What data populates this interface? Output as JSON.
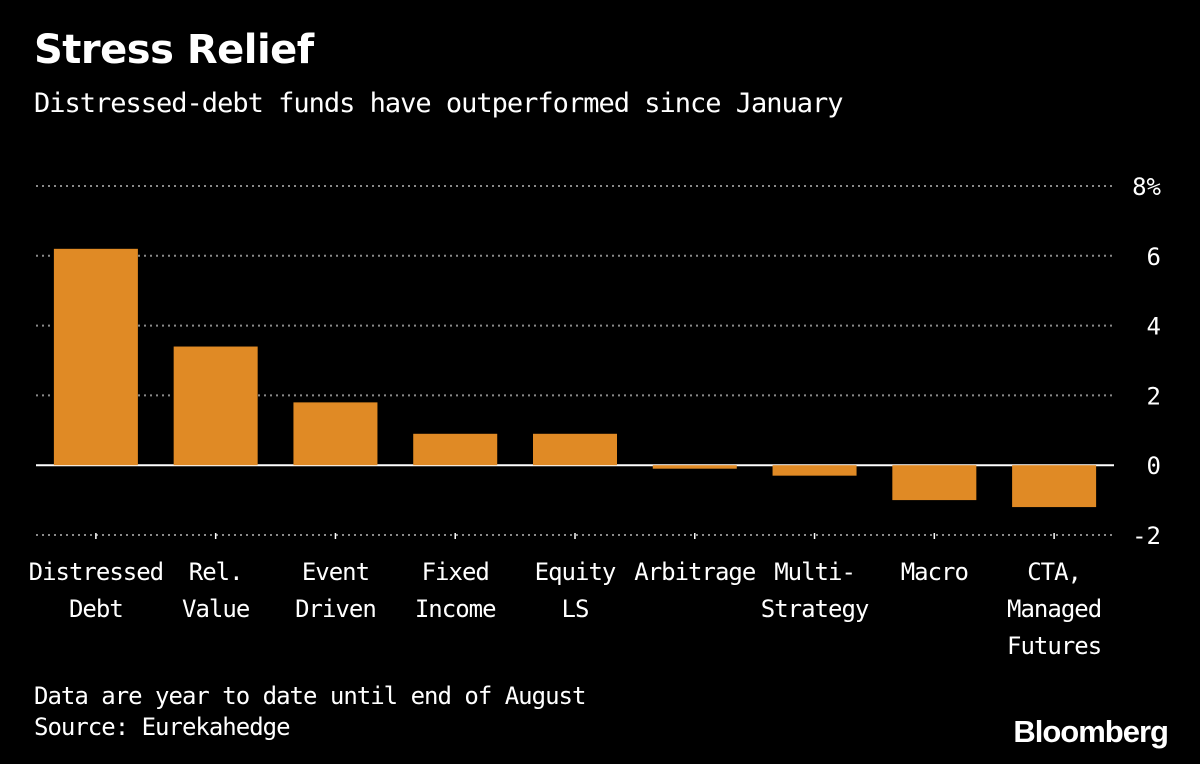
{
  "header": {
    "title": "Stress Relief",
    "subtitle": "Distressed-debt funds have outperformed since January"
  },
  "footer": {
    "note": "Data are year to date until end of August",
    "source": "Source: Eurekahedge",
    "brand": "Bloomberg"
  },
  "colors": {
    "background": "#000000",
    "bar": "#e08a25",
    "text": "#ffffff",
    "grid": "#8a8a8a"
  },
  "chart_data": {
    "type": "bar",
    "title": "Stress Relief",
    "subtitle": "Distressed-debt funds have outperformed since January",
    "xlabel": "",
    "ylabel": "",
    "categories": [
      [
        "Distressed",
        "Debt"
      ],
      [
        "Rel.",
        "Value"
      ],
      [
        "Event",
        "Driven"
      ],
      [
        "Fixed",
        "Income"
      ],
      [
        "Equity",
        "LS"
      ],
      [
        "Arbitrage"
      ],
      [
        "Multi-",
        "Strategy"
      ],
      [
        "Macro"
      ],
      [
        "CTA,",
        "Managed",
        "Futures"
      ]
    ],
    "values": [
      6.2,
      3.4,
      1.8,
      0.9,
      0.9,
      -0.1,
      -0.3,
      -1.0,
      -1.2
    ],
    "ylim": [
      -2,
      8
    ],
    "yticks": [
      8,
      6,
      4,
      2,
      0,
      -2
    ],
    "ytick_labels": [
      "8%",
      "6",
      "4",
      "2",
      "0",
      "-2"
    ],
    "grid": true,
    "units": "%"
  }
}
